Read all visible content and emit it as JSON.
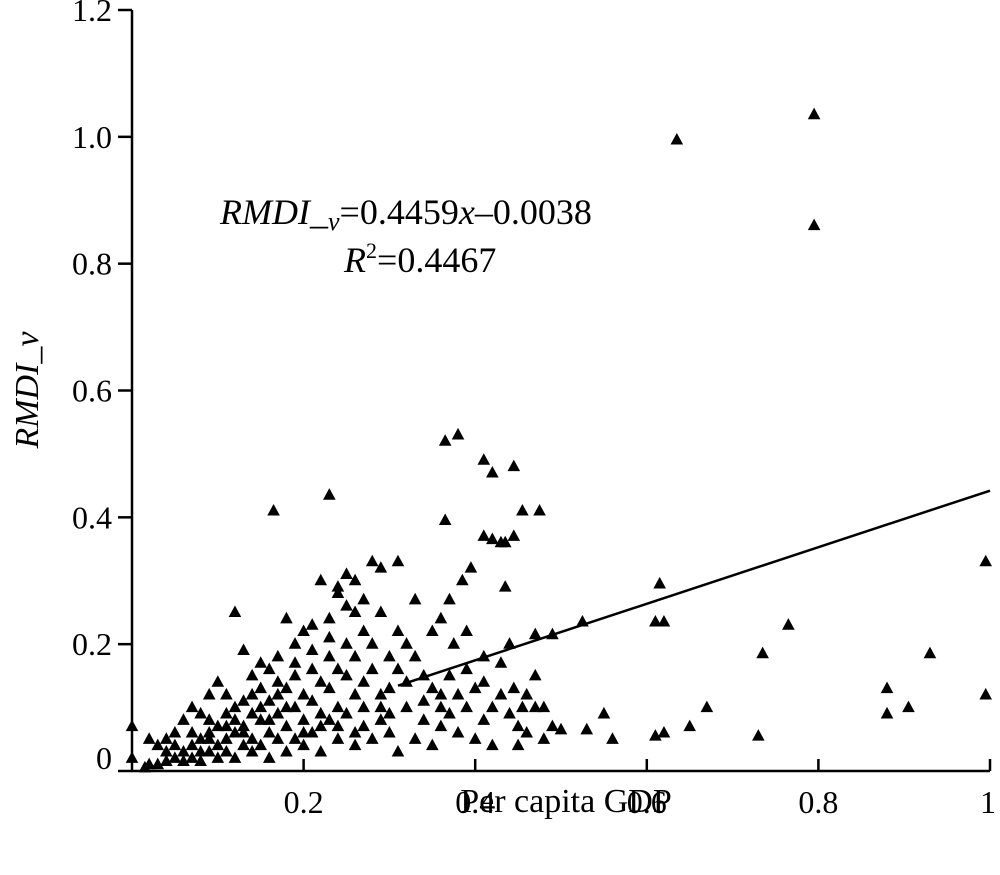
{
  "chart_data": {
    "type": "scatter",
    "title": "",
    "xlabel": "Per capita GDP",
    "ylabel": "RMDI_v",
    "xlim": [
      0,
      1
    ],
    "ylim": [
      0,
      1.2
    ],
    "x_ticks": [
      {
        "value": 0.2,
        "label": "0.2"
      },
      {
        "value": 0.4,
        "label": "0.4"
      },
      {
        "value": 0.6,
        "label": "0.6"
      },
      {
        "value": 0.8,
        "label": "0.8"
      },
      {
        "value": 1.0,
        "label": "1"
      }
    ],
    "y_ticks": [
      {
        "value": 0,
        "label": "0"
      },
      {
        "value": 0.2,
        "label": "0.2"
      },
      {
        "value": 0.4,
        "label": "0.4"
      },
      {
        "value": 0.6,
        "label": "0.6"
      },
      {
        "value": 0.8,
        "label": "0.8"
      },
      {
        "value": 1.0,
        "label": "1.0"
      },
      {
        "value": 1.2,
        "label": "1.2"
      }
    ],
    "marker": "triangle",
    "marker_color": "#000000",
    "grid": false,
    "legend": "none",
    "trendline": {
      "slope": 0.4459,
      "intercept": -0.0038,
      "equation_label": "RMDI_v=0.4459x−0.0038",
      "r2_label": "R2=0.4467",
      "r2_value": "0.4467"
    },
    "series": [
      {
        "points": [
          [
            0.635,
            0.995
          ],
          [
            0.795,
            1.035
          ],
          [
            0.795,
            0.86
          ],
          [
            0.365,
            0.52
          ],
          [
            0.38,
            0.53
          ],
          [
            0.41,
            0.49
          ],
          [
            0.42,
            0.47
          ],
          [
            0.445,
            0.48
          ],
          [
            0.365,
            0.395
          ],
          [
            0.455,
            0.41
          ],
          [
            0.475,
            0.41
          ],
          [
            0.41,
            0.37
          ],
          [
            0.42,
            0.365
          ],
          [
            0.435,
            0.36
          ],
          [
            0.445,
            0.37
          ],
          [
            0.165,
            0.41
          ],
          [
            0.23,
            0.435
          ],
          [
            0.385,
            0.3
          ],
          [
            0.395,
            0.32
          ],
          [
            0.435,
            0.29
          ],
          [
            0.36,
            0.24
          ],
          [
            0.37,
            0.27
          ],
          [
            0.47,
            0.215
          ],
          [
            0.49,
            0.215
          ],
          [
            0.525,
            0.235
          ],
          [
            0.615,
            0.295
          ],
          [
            0.61,
            0.235
          ],
          [
            0.62,
            0.235
          ],
          [
            0.995,
            0.33
          ],
          [
            0.765,
            0.23
          ],
          [
            0.735,
            0.185
          ],
          [
            0.93,
            0.185
          ],
          [
            0.88,
            0.13
          ],
          [
            0.995,
            0.12
          ],
          [
            0.905,
            0.1
          ],
          [
            0.88,
            0.09
          ],
          [
            0.67,
            0.1
          ],
          [
            0.73,
            0.055
          ],
          [
            0.65,
            0.07
          ],
          [
            0.62,
            0.06
          ],
          [
            0.61,
            0.055
          ],
          [
            0.55,
            0.09
          ],
          [
            0.56,
            0.05
          ],
          [
            0.53,
            0.065
          ],
          [
            0.5,
            0.065
          ],
          [
            0.49,
            0.07
          ],
          [
            0.48,
            0.05
          ],
          [
            0.46,
            0.06
          ],
          [
            0.455,
            0.1
          ],
          [
            0.44,
            0.09
          ],
          [
            0.445,
            0.13
          ],
          [
            0.47,
            0.15
          ],
          [
            0.43,
            0.12
          ],
          [
            0.42,
            0.1
          ],
          [
            0.41,
            0.08
          ],
          [
            0.4,
            0.13
          ],
          [
            0.39,
            0.1
          ],
          [
            0.38,
            0.12
          ],
          [
            0.37,
            0.09
          ],
          [
            0.36,
            0.1
          ],
          [
            0.35,
            0.13
          ],
          [
            0.34,
            0.15
          ],
          [
            0.33,
            0.18
          ],
          [
            0.32,
            0.2
          ],
          [
            0.31,
            0.16
          ],
          [
            0.3,
            0.13
          ],
          [
            0.29,
            0.12
          ],
          [
            0.28,
            0.2
          ],
          [
            0.27,
            0.22
          ],
          [
            0.26,
            0.25
          ],
          [
            0.25,
            0.26
          ],
          [
            0.24,
            0.28
          ],
          [
            0.23,
            0.24
          ],
          [
            0.22,
            0.3
          ],
          [
            0.21,
            0.23
          ],
          [
            0.2,
            0.22
          ],
          [
            0.19,
            0.2
          ],
          [
            0.18,
            0.24
          ],
          [
            0.17,
            0.18
          ],
          [
            0.16,
            0.16
          ],
          [
            0.15,
            0.17
          ],
          [
            0.14,
            0.15
          ],
          [
            0.13,
            0.19
          ],
          [
            0.12,
            0.25
          ],
          [
            0.11,
            0.12
          ],
          [
            0.1,
            0.14
          ],
          [
            0.09,
            0.12
          ],
          [
            0.08,
            0.09
          ],
          [
            0.07,
            0.1
          ],
          [
            0.06,
            0.08
          ],
          [
            0.28,
            0.33
          ],
          [
            0.29,
            0.32
          ],
          [
            0.26,
            0.3
          ],
          [
            0.25,
            0.31
          ],
          [
            0.24,
            0.29
          ],
          [
            0.33,
            0.27
          ],
          [
            0.31,
            0.33
          ],
          [
            0.27,
            0.14
          ],
          [
            0.26,
            0.12
          ],
          [
            0.25,
            0.15
          ],
          [
            0.24,
            0.1
          ],
          [
            0.23,
            0.13
          ],
          [
            0.22,
            0.09
          ],
          [
            0.21,
            0.11
          ],
          [
            0.2,
            0.08
          ],
          [
            0.19,
            0.1
          ],
          [
            0.18,
            0.07
          ],
          [
            0.17,
            0.09
          ],
          [
            0.16,
            0.06
          ],
          [
            0.15,
            0.08
          ],
          [
            0.14,
            0.05
          ],
          [
            0.13,
            0.07
          ],
          [
            0.12,
            0.06
          ],
          [
            0.11,
            0.05
          ],
          [
            0.1,
            0.04
          ],
          [
            0.09,
            0.05
          ],
          [
            0.08,
            0.03
          ],
          [
            0.07,
            0.04
          ],
          [
            0.06,
            0.03
          ],
          [
            0.05,
            0.02
          ],
          [
            0.04,
            0.015
          ],
          [
            0.03,
            0.01
          ],
          [
            0.02,
            0.01
          ],
          [
            0.015,
            0.005
          ],
          [
            0.0,
            0.07
          ],
          [
            0.0,
            0.02
          ],
          [
            0.02,
            0.05
          ],
          [
            0.03,
            0.04
          ],
          [
            0.05,
            0.06
          ],
          [
            0.04,
            0.03
          ],
          [
            0.12,
            0.1
          ],
          [
            0.14,
            0.12
          ],
          [
            0.16,
            0.11
          ],
          [
            0.18,
            0.13
          ],
          [
            0.2,
            0.12
          ],
          [
            0.22,
            0.14
          ],
          [
            0.24,
            0.16
          ],
          [
            0.26,
            0.18
          ],
          [
            0.28,
            0.16
          ],
          [
            0.3,
            0.18
          ],
          [
            0.32,
            0.14
          ],
          [
            0.34,
            0.11
          ],
          [
            0.36,
            0.07
          ],
          [
            0.38,
            0.06
          ],
          [
            0.4,
            0.05
          ],
          [
            0.42,
            0.04
          ],
          [
            0.3,
            0.06
          ],
          [
            0.28,
            0.05
          ],
          [
            0.26,
            0.04
          ],
          [
            0.24,
            0.05
          ],
          [
            0.22,
            0.03
          ],
          [
            0.2,
            0.04
          ],
          [
            0.18,
            0.03
          ],
          [
            0.16,
            0.02
          ],
          [
            0.14,
            0.03
          ],
          [
            0.12,
            0.02
          ],
          [
            0.1,
            0.02
          ],
          [
            0.08,
            0.015
          ],
          [
            0.45,
            0.07
          ],
          [
            0.47,
            0.1
          ],
          [
            0.44,
            0.2
          ],
          [
            0.41,
            0.18
          ],
          [
            0.39,
            0.22
          ],
          [
            0.375,
            0.2
          ],
          [
            0.35,
            0.22
          ],
          [
            0.43,
            0.36
          ],
          [
            0.45,
            0.04
          ],
          [
            0.33,
            0.05
          ],
          [
            0.31,
            0.03
          ],
          [
            0.35,
            0.04
          ],
          [
            0.29,
            0.08
          ],
          [
            0.27,
            0.07
          ],
          [
            0.25,
            0.09
          ],
          [
            0.23,
            0.08
          ],
          [
            0.21,
            0.06
          ],
          [
            0.19,
            0.05
          ],
          [
            0.17,
            0.05
          ],
          [
            0.15,
            0.04
          ],
          [
            0.13,
            0.04
          ],
          [
            0.11,
            0.03
          ],
          [
            0.09,
            0.03
          ],
          [
            0.07,
            0.02
          ],
          [
            0.06,
            0.015
          ],
          [
            0.21,
            0.19
          ],
          [
            0.19,
            0.17
          ],
          [
            0.23,
            0.21
          ],
          [
            0.17,
            0.14
          ],
          [
            0.15,
            0.13
          ],
          [
            0.13,
            0.11
          ],
          [
            0.11,
            0.09
          ],
          [
            0.09,
            0.08
          ],
          [
            0.1,
            0.07
          ],
          [
            0.12,
            0.08
          ],
          [
            0.14,
            0.09
          ],
          [
            0.16,
            0.08
          ],
          [
            0.18,
            0.1
          ],
          [
            0.2,
            0.06
          ],
          [
            0.22,
            0.07
          ],
          [
            0.24,
            0.07
          ],
          [
            0.26,
            0.06
          ],
          [
            0.27,
            0.1
          ],
          [
            0.29,
            0.1
          ],
          [
            0.3,
            0.09
          ],
          [
            0.32,
            0.1
          ],
          [
            0.34,
            0.08
          ],
          [
            0.36,
            0.12
          ],
          [
            0.37,
            0.15
          ],
          [
            0.39,
            0.16
          ],
          [
            0.41,
            0.14
          ],
          [
            0.43,
            0.17
          ],
          [
            0.46,
            0.12
          ],
          [
            0.48,
            0.1
          ],
          [
            0.31,
            0.22
          ],
          [
            0.29,
            0.25
          ],
          [
            0.27,
            0.27
          ],
          [
            0.25,
            0.2
          ],
          [
            0.23,
            0.18
          ],
          [
            0.21,
            0.16
          ],
          [
            0.19,
            0.15
          ],
          [
            0.17,
            0.12
          ],
          [
            0.15,
            0.1
          ],
          [
            0.13,
            0.06
          ],
          [
            0.11,
            0.07
          ],
          [
            0.09,
            0.06
          ],
          [
            0.08,
            0.05
          ],
          [
            0.07,
            0.06
          ],
          [
            0.05,
            0.04
          ],
          [
            0.04,
            0.05
          ]
        ]
      }
    ]
  }
}
